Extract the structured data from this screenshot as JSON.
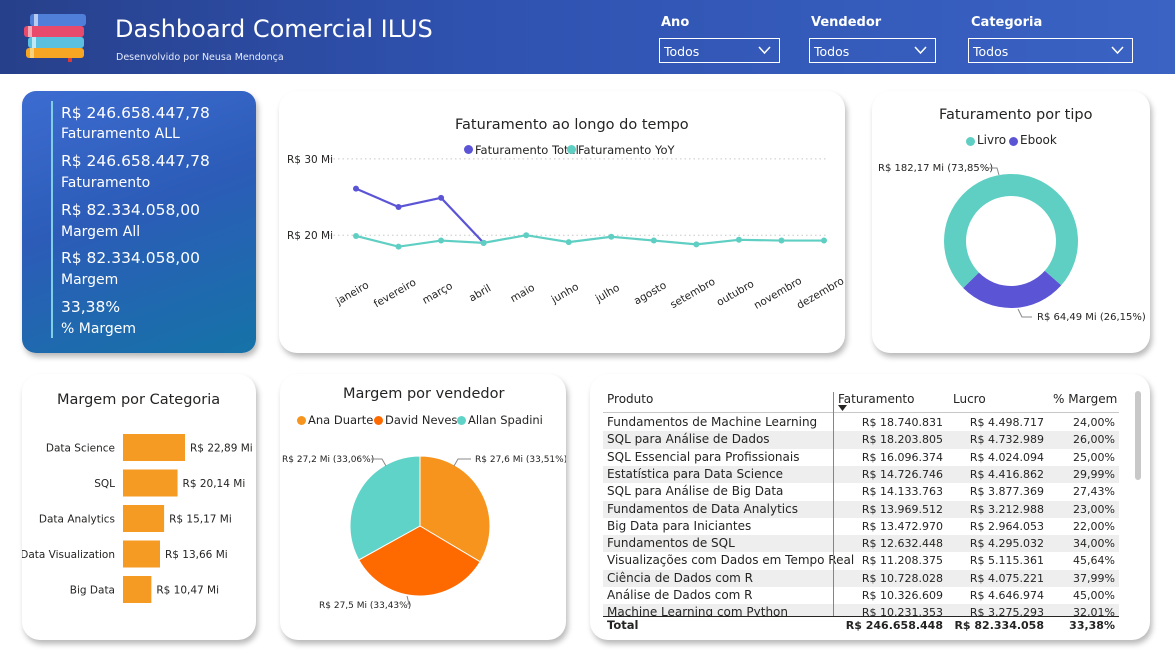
{
  "header": {
    "title": "Dashboard Comercial ILUS",
    "subtitle": "Desenvolvido por Neusa Mendonça",
    "filters": [
      {
        "label": "Ano",
        "value": "Todos"
      },
      {
        "label": "Vendedor",
        "value": "Todos"
      },
      {
        "label": "Categoria",
        "value": "Todos"
      }
    ]
  },
  "kpis": [
    {
      "value": "R$ 246.658.447,78",
      "label": "Faturamento ALL"
    },
    {
      "value": "R$ 246.658.447,78",
      "label": "Faturamento"
    },
    {
      "value": "R$ 82.334.058,00",
      "label": "Margem All"
    },
    {
      "value": "R$ 82.334.058,00",
      "label": "Margem"
    },
    {
      "value": "33,38%",
      "label": "% Margem"
    }
  ],
  "chart_data": [
    {
      "type": "line",
      "title": "Faturamento ao longo do tempo",
      "categories": [
        "janeiro",
        "fevereiro",
        "março",
        "abril",
        "maio",
        "junho",
        "julho",
        "agosto",
        "setembro",
        "outubro",
        "novembro",
        "dezembro"
      ],
      "y_ticks": [
        "R$ 20 Mi",
        "R$ 30 Mi"
      ],
      "ylim_mi": [
        14,
        33
      ],
      "grid": true,
      "legend_position": "top-center",
      "series": [
        {
          "name": "Faturamento Total",
          "color": "#5b55d6",
          "values": [
            26.1,
            23.7,
            24.9,
            19.0,
            null,
            null,
            null,
            null,
            null,
            null,
            null,
            null
          ]
        },
        {
          "name": "Faturamento YoY",
          "color": "#5fcfc3",
          "values": [
            19.9,
            18.5,
            19.3,
            19.0,
            20.0,
            19.1,
            19.8,
            19.3,
            18.8,
            19.4,
            19.3,
            19.3
          ]
        }
      ]
    },
    {
      "type": "pie",
      "donut": true,
      "title": "Faturamento por tipo",
      "legend_position": "top-center",
      "slices": [
        {
          "name": "Livro",
          "value": 182.17,
          "label": "R$ 182,17 Mi (73,85%)",
          "color": "#5fcfc3"
        },
        {
          "name": "Ebook",
          "value": 64.49,
          "label": "R$ 64,49 Mi (26,15%)",
          "color": "#5b55d6"
        }
      ]
    },
    {
      "type": "bar",
      "orientation": "horizontal",
      "title": "Margem por Categoria",
      "color": "#f59a23",
      "categories": [
        "Data Science",
        "SQL",
        "Data Analytics",
        "Data Visualization",
        "Big Data"
      ],
      "values": [
        22.89,
        20.14,
        15.17,
        13.66,
        10.47
      ],
      "data_labels": [
        "R$ 22,89 Mi",
        "R$ 20,14 Mi",
        "R$ 15,17 Mi",
        "R$ 13,66 Mi",
        "R$ 10,47 Mi"
      ]
    },
    {
      "type": "pie",
      "title": "Margem por vendedor",
      "legend_position": "top-center",
      "slices": [
        {
          "name": "Ana Duarte",
          "value": 27.6,
          "label": "R$ 27,6 Mi (33,51%)",
          "color": "#f7941d"
        },
        {
          "name": "David Neves",
          "value": 27.5,
          "label": "R$ 27,5 Mi (33,43%)",
          "color": "#ff6a00"
        },
        {
          "name": "Allan Spadini",
          "value": 27.2,
          "label": "R$ 27,2 Mi (33,06%)",
          "color": "#5fd3c8"
        }
      ]
    }
  ],
  "table": {
    "headers": [
      "Produto",
      "Faturamento",
      "Lucro",
      "% Margem"
    ],
    "rows": [
      [
        "Fundamentos de Machine Learning",
        "R$ 18.740.831",
        "R$ 4.498.717",
        "24,00%"
      ],
      [
        "SQL para Análise de Dados",
        "R$ 18.203.805",
        "R$ 4.732.989",
        "26,00%"
      ],
      [
        "SQL Essencial para Profissionais",
        "R$ 16.096.374",
        "R$ 4.024.094",
        "25,00%"
      ],
      [
        "Estatística para Data Science",
        "R$ 14.726.746",
        "R$ 4.416.862",
        "29,99%"
      ],
      [
        "SQL para Análise de Big Data",
        "R$ 14.133.763",
        "R$ 3.877.369",
        "27,43%"
      ],
      [
        "Fundamentos de Data Analytics",
        "R$ 13.969.512",
        "R$ 3.212.988",
        "23,00%"
      ],
      [
        "Big Data para Iniciantes",
        "R$ 13.472.970",
        "R$ 2.964.053",
        "22,00%"
      ],
      [
        "Fundamentos de SQL",
        "R$ 12.632.448",
        "R$ 4.295.032",
        "34,00%"
      ],
      [
        "Visualizações com Dados em Tempo Real",
        "R$ 11.208.375",
        "R$ 5.115.361",
        "45,64%"
      ],
      [
        "Ciência de Dados com R",
        "R$ 10.728.028",
        "R$ 4.075.221",
        "37,99%"
      ],
      [
        "Análise de Dados com R",
        "R$ 10.326.609",
        "R$ 4.646.974",
        "45,00%"
      ],
      [
        "Machine Learning com Python",
        "R$ 10.231.353",
        "R$ 3.275.293",
        "32,01%"
      ]
    ],
    "total": [
      "Total",
      "R$ 246.658.448",
      "R$ 82.334.058",
      "33,38%"
    ]
  }
}
